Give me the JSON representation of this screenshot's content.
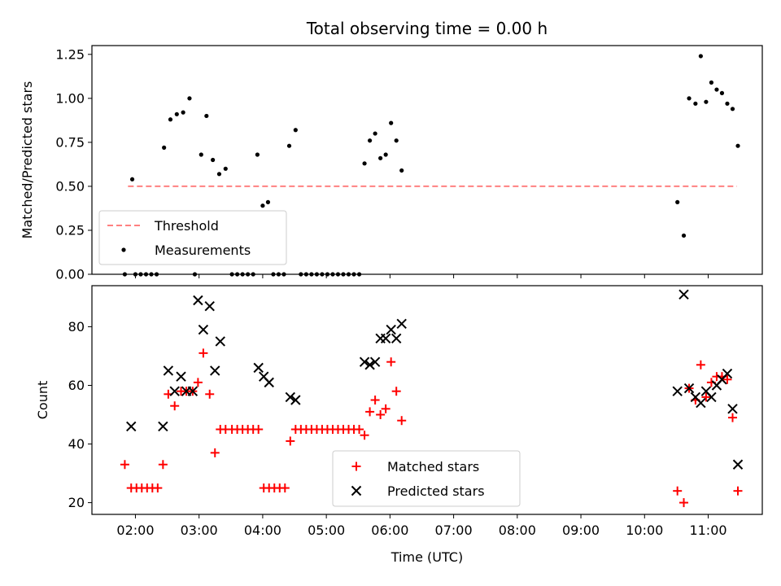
{
  "chart_data": [
    {
      "type": "scatter",
      "title": "Total observing time = 0.00 h",
      "ylabel": "Matched/Predicted stars",
      "ylim": [
        0,
        1.3
      ],
      "yticks": [
        0.0,
        0.25,
        0.5,
        0.75,
        1.0,
        1.25
      ],
      "ytick_labels": [
        "0.00",
        "0.25",
        "0.50",
        "0.75",
        "1.00",
        "1.25"
      ],
      "threshold": {
        "name": "Threshold",
        "value": 0.5,
        "x_range": [
          "01:53",
          "11:27"
        ],
        "color": "#ff8080",
        "style": "dashed"
      },
      "series": [
        {
          "name": "Measurements",
          "color": "#000000",
          "marker": "dot",
          "points": [
            [
              "01:50",
              0.0
            ],
            [
              "01:57",
              0.54
            ],
            [
              "02:00",
              0.0
            ],
            [
              "02:05",
              0.0
            ],
            [
              "02:10",
              0.0
            ],
            [
              "02:15",
              0.0
            ],
            [
              "02:20",
              0.0
            ],
            [
              "02:27",
              0.72
            ],
            [
              "02:33",
              0.88
            ],
            [
              "02:39",
              0.91
            ],
            [
              "02:45",
              0.92
            ],
            [
              "02:51",
              1.0
            ],
            [
              "02:56",
              0.0
            ],
            [
              "03:02",
              0.68
            ],
            [
              "03:07",
              0.9
            ],
            [
              "03:13",
              0.65
            ],
            [
              "03:19",
              0.57
            ],
            [
              "03:25",
              0.6
            ],
            [
              "03:31",
              0.0
            ],
            [
              "03:36",
              0.0
            ],
            [
              "03:41",
              0.0
            ],
            [
              "03:46",
              0.0
            ],
            [
              "03:51",
              0.0
            ],
            [
              "03:55",
              0.68
            ],
            [
              "04:00",
              0.39
            ],
            [
              "04:05",
              0.41
            ],
            [
              "04:10",
              0.0
            ],
            [
              "04:15",
              0.0
            ],
            [
              "04:20",
              0.0
            ],
            [
              "04:25",
              0.73
            ],
            [
              "04:31",
              0.82
            ],
            [
              "04:36",
              0.0
            ],
            [
              "04:41",
              0.0
            ],
            [
              "04:46",
              0.0
            ],
            [
              "04:51",
              0.0
            ],
            [
              "04:56",
              0.0
            ],
            [
              "05:01",
              0.0
            ],
            [
              "05:06",
              0.0
            ],
            [
              "05:11",
              0.0
            ],
            [
              "05:16",
              0.0
            ],
            [
              "05:21",
              0.0
            ],
            [
              "05:26",
              0.0
            ],
            [
              "05:31",
              0.0
            ],
            [
              "05:36",
              0.63
            ],
            [
              "05:41",
              0.76
            ],
            [
              "05:46",
              0.8
            ],
            [
              "05:51",
              0.66
            ],
            [
              "05:56",
              0.68
            ],
            [
              "06:01",
              0.86
            ],
            [
              "06:06",
              0.76
            ],
            [
              "06:11",
              0.59
            ],
            [
              "10:31",
              0.41
            ],
            [
              "10:37",
              0.22
            ],
            [
              "10:42",
              1.0
            ],
            [
              "10:48",
              0.97
            ],
            [
              "10:53",
              1.24
            ],
            [
              "10:58",
              0.98
            ],
            [
              "11:03",
              1.09
            ],
            [
              "11:08",
              1.05
            ],
            [
              "11:13",
              1.03
            ],
            [
              "11:18",
              0.97
            ],
            [
              "11:23",
              0.94
            ],
            [
              "11:28",
              0.73
            ]
          ]
        }
      ],
      "legend": {
        "position": "lower-left",
        "entries": [
          "Threshold",
          "Measurements"
        ]
      }
    },
    {
      "type": "scatter",
      "xlabel": "Time (UTC)",
      "ylabel": "Count",
      "ylim": [
        16,
        94
      ],
      "yticks": [
        20,
        40,
        60,
        80
      ],
      "xlim": [
        "01:19",
        "11:51"
      ],
      "xticks": [
        "02:00",
        "03:00",
        "04:00",
        "05:00",
        "06:00",
        "07:00",
        "08:00",
        "09:00",
        "10:00",
        "11:00"
      ],
      "series": [
        {
          "name": "Matched stars",
          "color": "#ff0000",
          "marker": "plus",
          "points": [
            [
              "01:50",
              33
            ],
            [
              "01:56",
              25
            ],
            [
              "02:01",
              25
            ],
            [
              "02:06",
              25
            ],
            [
              "02:11",
              25
            ],
            [
              "02:16",
              25
            ],
            [
              "02:21",
              25
            ],
            [
              "02:26",
              33
            ],
            [
              "02:31",
              57
            ],
            [
              "02:37",
              53
            ],
            [
              "02:43",
              58
            ],
            [
              "02:48",
              58
            ],
            [
              "02:54",
              58
            ],
            [
              "02:59",
              61
            ],
            [
              "03:04",
              71
            ],
            [
              "03:10",
              57
            ],
            [
              "03:15",
              37
            ],
            [
              "03:20",
              45
            ],
            [
              "03:25",
              45
            ],
            [
              "03:31",
              45
            ],
            [
              "03:36",
              45
            ],
            [
              "03:41",
              45
            ],
            [
              "03:46",
              45
            ],
            [
              "03:51",
              45
            ],
            [
              "03:56",
              45
            ],
            [
              "04:01",
              25
            ],
            [
              "04:06",
              25
            ],
            [
              "04:11",
              25
            ],
            [
              "04:16",
              25
            ],
            [
              "04:21",
              25
            ],
            [
              "04:26",
              41
            ],
            [
              "04:31",
              45
            ],
            [
              "04:36",
              45
            ],
            [
              "04:41",
              45
            ],
            [
              "04:46",
              45
            ],
            [
              "04:51",
              45
            ],
            [
              "04:56",
              45
            ],
            [
              "05:01",
              45
            ],
            [
              "05:06",
              45
            ],
            [
              "05:11",
              45
            ],
            [
              "05:16",
              45
            ],
            [
              "05:21",
              45
            ],
            [
              "05:26",
              45
            ],
            [
              "05:31",
              45
            ],
            [
              "05:36",
              43
            ],
            [
              "05:41",
              51
            ],
            [
              "05:46",
              55
            ],
            [
              "05:51",
              50
            ],
            [
              "05:56",
              52
            ],
            [
              "06:01",
              68
            ],
            [
              "06:06",
              58
            ],
            [
              "06:11",
              48
            ],
            [
              "10:31",
              24
            ],
            [
              "10:37",
              20
            ],
            [
              "10:42",
              59
            ],
            [
              "10:48",
              55
            ],
            [
              "10:53",
              67
            ],
            [
              "10:58",
              56
            ],
            [
              "11:03",
              61
            ],
            [
              "11:08",
              63
            ],
            [
              "11:13",
              63
            ],
            [
              "11:18",
              62
            ],
            [
              "11:23",
              49
            ],
            [
              "11:28",
              24
            ]
          ]
        },
        {
          "name": "Predicted stars",
          "color": "#000000",
          "marker": "cross",
          "points": [
            [
              "01:56",
              46
            ],
            [
              "02:26",
              46
            ],
            [
              "02:31",
              65
            ],
            [
              "02:37",
              58
            ],
            [
              "02:43",
              63
            ],
            [
              "02:48",
              58
            ],
            [
              "02:54",
              58
            ],
            [
              "02:59",
              89
            ],
            [
              "03:04",
              79
            ],
            [
              "03:10",
              87
            ],
            [
              "03:15",
              65
            ],
            [
              "03:20",
              75
            ],
            [
              "03:56",
              66
            ],
            [
              "04:01",
              63
            ],
            [
              "04:06",
              61
            ],
            [
              "04:26",
              56
            ],
            [
              "04:31",
              55
            ],
            [
              "05:36",
              68
            ],
            [
              "05:41",
              67
            ],
            [
              "05:46",
              68
            ],
            [
              "05:51",
              76
            ],
            [
              "05:56",
              76
            ],
            [
              "06:01",
              79
            ],
            [
              "06:06",
              76
            ],
            [
              "06:11",
              81
            ],
            [
              "10:31",
              58
            ],
            [
              "10:37",
              91
            ],
            [
              "10:42",
              59
            ],
            [
              "10:48",
              56
            ],
            [
              "10:53",
              54
            ],
            [
              "10:58",
              58
            ],
            [
              "11:03",
              56
            ],
            [
              "11:08",
              60
            ],
            [
              "11:13",
              62
            ],
            [
              "11:18",
              64
            ],
            [
              "11:23",
              52
            ],
            [
              "11:28",
              33
            ]
          ]
        }
      ],
      "legend": {
        "position": "lower-center",
        "entries": [
          "Matched stars",
          "Predicted stars"
        ]
      }
    }
  ]
}
